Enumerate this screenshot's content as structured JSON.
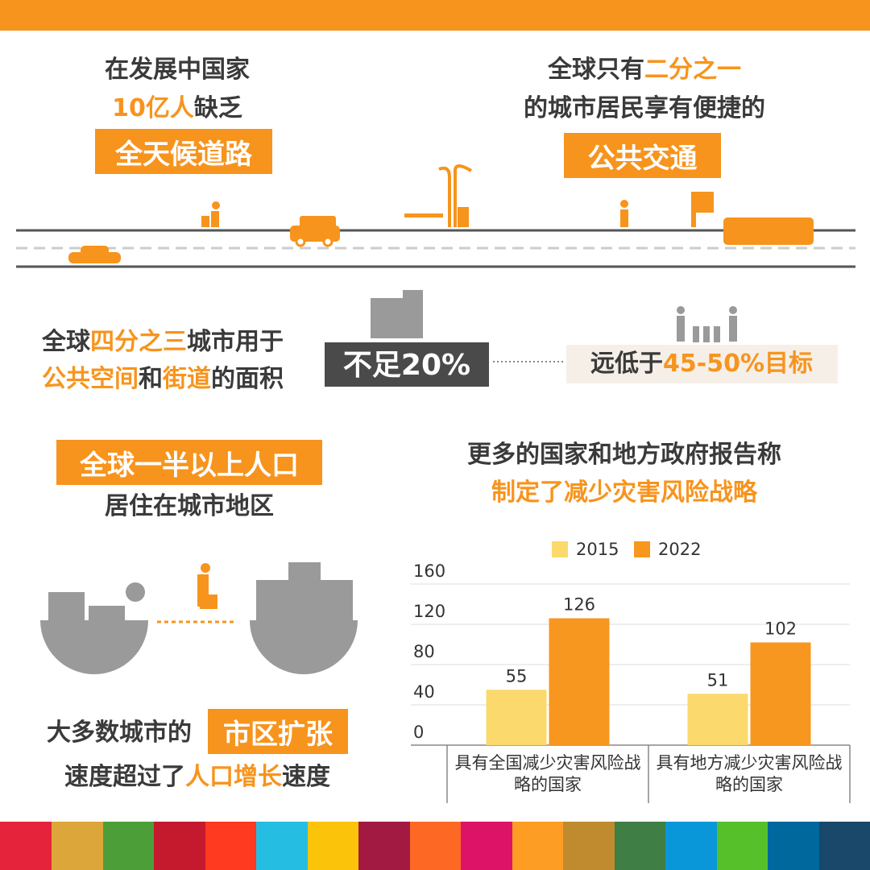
{
  "block1": {
    "line1": "在发展中国家",
    "line2a": "10亿人",
    "line2b": "缺乏",
    "badge": "全天候道路"
  },
  "block2": {
    "line1a": "全球只有",
    "line1b": "二分之一",
    "line2": "的城市居民享有便捷的",
    "badge": "公共交通"
  },
  "block3": {
    "line1a": "全球",
    "line1b": "四分之三",
    "line1c": "城市用于",
    "line2a": "公共空间",
    "line2b": "和",
    "line2c": "街道",
    "line2d": "的面积",
    "box": "不足20%",
    "target_a": "远低于",
    "target_b": "45-50%目标"
  },
  "block4": {
    "badge": "全球一半以上人口",
    "line2": "居住在城市地区"
  },
  "block5": {
    "line1": "大多数城市的",
    "badge": "市区扩张",
    "line2a": "速度超过了",
    "line2b": "人口增长",
    "line2c": "速度"
  },
  "chart_data": {
    "type": "bar",
    "title": "更多的国家和地方政府报告称",
    "subtitle": "制定了减少灾害风险战略",
    "categories": [
      "具有全国减少灾害风险战略的国家",
      "具有地方减少灾害风险战略的国家"
    ],
    "series": [
      {
        "name": "2015",
        "color": "#fbd96c",
        "values": [
          55,
          51
        ]
      },
      {
        "name": "2022",
        "color": "#f7971f",
        "values": [
          126,
          102
        ]
      }
    ],
    "ylim": [
      0,
      160
    ],
    "yticks": [
      0,
      40,
      80,
      120,
      160
    ],
    "grid": true
  }
}
